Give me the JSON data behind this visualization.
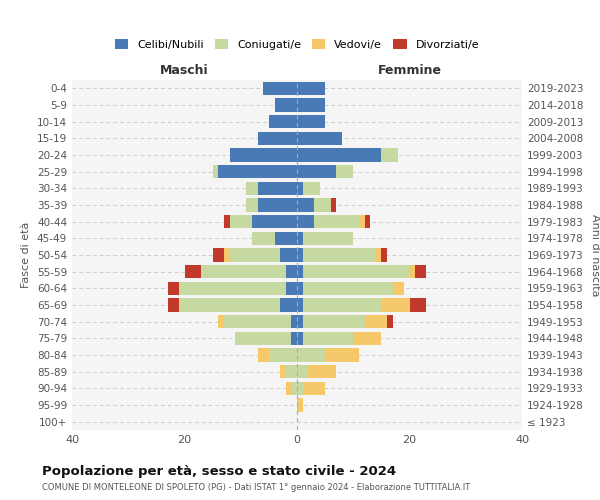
{
  "age_groups": [
    "100+",
    "95-99",
    "90-94",
    "85-89",
    "80-84",
    "75-79",
    "70-74",
    "65-69",
    "60-64",
    "55-59",
    "50-54",
    "45-49",
    "40-44",
    "35-39",
    "30-34",
    "25-29",
    "20-24",
    "15-19",
    "10-14",
    "5-9",
    "0-4"
  ],
  "birth_years": [
    "≤ 1923",
    "1924-1928",
    "1929-1933",
    "1934-1938",
    "1939-1943",
    "1944-1948",
    "1949-1953",
    "1954-1958",
    "1959-1963",
    "1964-1968",
    "1969-1973",
    "1974-1978",
    "1979-1983",
    "1984-1988",
    "1989-1993",
    "1994-1998",
    "1999-2003",
    "2004-2008",
    "2009-2013",
    "2014-2018",
    "2019-2023"
  ],
  "male": {
    "celibi": [
      0,
      0,
      0,
      0,
      0,
      1,
      1,
      3,
      2,
      2,
      3,
      4,
      8,
      7,
      7,
      14,
      12,
      7,
      5,
      4,
      6
    ],
    "coniugati": [
      0,
      0,
      1,
      2,
      5,
      10,
      12,
      18,
      19,
      15,
      9,
      4,
      4,
      2,
      2,
      1,
      0,
      0,
      0,
      0,
      0
    ],
    "vedovi": [
      0,
      0,
      1,
      1,
      2,
      0,
      1,
      0,
      0,
      0,
      1,
      0,
      0,
      0,
      0,
      0,
      0,
      0,
      0,
      0,
      0
    ],
    "divorziati": [
      0,
      0,
      0,
      0,
      0,
      0,
      0,
      2,
      2,
      3,
      2,
      0,
      1,
      0,
      0,
      0,
      0,
      0,
      0,
      0,
      0
    ]
  },
  "female": {
    "nubili": [
      0,
      0,
      0,
      0,
      0,
      1,
      1,
      1,
      1,
      1,
      1,
      1,
      3,
      3,
      1,
      7,
      15,
      8,
      5,
      5,
      5
    ],
    "coniugate": [
      0,
      0,
      1,
      2,
      5,
      9,
      11,
      14,
      16,
      19,
      13,
      9,
      8,
      3,
      3,
      3,
      3,
      0,
      0,
      0,
      0
    ],
    "vedove": [
      0,
      1,
      4,
      5,
      6,
      5,
      4,
      5,
      2,
      1,
      1,
      0,
      1,
      0,
      0,
      0,
      0,
      0,
      0,
      0,
      0
    ],
    "divorziate": [
      0,
      0,
      0,
      0,
      0,
      0,
      1,
      3,
      0,
      2,
      1,
      0,
      1,
      1,
      0,
      0,
      0,
      0,
      0,
      0,
      0
    ]
  },
  "colors": {
    "celibi": "#4a7ab5",
    "coniugati": "#c5d9a0",
    "vedovi": "#f5c96a",
    "divorziati": "#c0392b"
  },
  "xlim": 40,
  "title": "Popolazione per età, sesso e stato civile - 2024",
  "subtitle": "COMUNE DI MONTELEONE DI SPOLETO (PG) - Dati ISTAT 1° gennaio 2024 - Elaborazione TUTTITALIA.IT",
  "ylabel_left": "Fasce di età",
  "ylabel_right": "Anni di nascita",
  "xlabel_left": "Maschi",
  "xlabel_right": "Femmine",
  "bg_color": "#f5f5f5",
  "grid_color": "#cccccc"
}
